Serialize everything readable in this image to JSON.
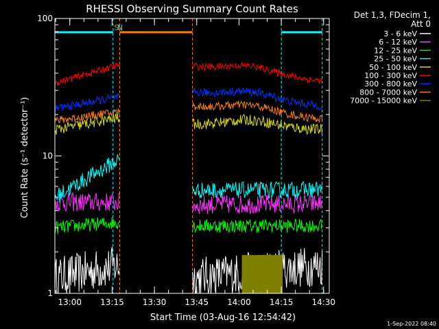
{
  "chart_data": {
    "type": "line",
    "title": "RHESSI Observing Summary Count Rates",
    "xlabel": "Start Time (03-Aug-16 12:54:42)",
    "ylabel": "Count Rate (s⁻¹ detector⁻¹)",
    "yscale": "log",
    "ylim": [
      1,
      100
    ],
    "xlim": [
      "12:54:42",
      "14:32:00"
    ],
    "grid": false,
    "legend_position": "right",
    "x_ticks": [
      "13:00",
      "13:15",
      "13:30",
      "13:45",
      "14:00",
      "14:15",
      "14:30"
    ],
    "y_ticks": [
      "1",
      "10",
      "100"
    ],
    "legend_header": [
      "Det 1,3, FDecim 1,",
      "Att 0"
    ],
    "footer": "1-Sep-2022 08:40",
    "segments": [
      {
        "start": "12:54:42",
        "end": "13:17:40"
      },
      {
        "start": "13:43:30",
        "end": "14:29:30"
      }
    ],
    "series": [
      {
        "name": "3 - 6 keV",
        "color": "#ffffff",
        "segment_values": [
          [
            1.3,
            1.6
          ],
          [
            1.3,
            1.6
          ]
        ]
      },
      {
        "name": "6 - 12 keV",
        "color": "#ff33ff",
        "segment_values": [
          [
            4.6,
            4.6
          ],
          [
            4.4,
            4.5
          ]
        ]
      },
      {
        "name": "12 - 25 keV",
        "color": "#00ff00",
        "segment_values": [
          [
            3.0,
            3.3
          ],
          [
            3.1,
            3.1
          ]
        ]
      },
      {
        "name": "25 - 50 keV",
        "color": "#00ffff",
        "segment_values": [
          [
            5.0,
            9.5
          ],
          [
            5.6,
            5.7
          ]
        ]
      },
      {
        "name": "50 - 100 keV",
        "color": "#dddd00",
        "segment_values": [
          [
            15.5,
            19.0
          ],
          [
            17.0,
            15.5
          ]
        ]
      },
      {
        "name": "100 - 300 keV",
        "color": "#ff0000",
        "segment_values": [
          [
            34.0,
            46.0
          ],
          [
            45.0,
            35.0
          ]
        ]
      },
      {
        "name": "300 - 800 keV",
        "color": "#0033ff",
        "segment_values": [
          [
            22.0,
            27.0
          ],
          [
            29.0,
            23.0
          ]
        ]
      },
      {
        "name": "800 - 7000 keV",
        "color": "#ff8000",
        "segment_values": [
          [
            18.0,
            21.0
          ],
          [
            23.0,
            18.5
          ]
        ]
      },
      {
        "name": "7000 - 15000 keV",
        "color": "#808000",
        "segment_values": [
          [
            1.0,
            1.0
          ],
          [
            1.0,
            1.0
          ]
        ]
      }
    ],
    "annotations": [
      {
        "label": "N",
        "color": "#00ffff",
        "start": "12:54:42",
        "end": "13:15:20"
      },
      {
        "label": "S",
        "color": "#ff8000",
        "start": "13:17:40",
        "end": "13:43:30"
      },
      {
        "label": "",
        "color": "#00ffff",
        "start": "14:15:00",
        "end": "14:29:30"
      }
    ]
  }
}
